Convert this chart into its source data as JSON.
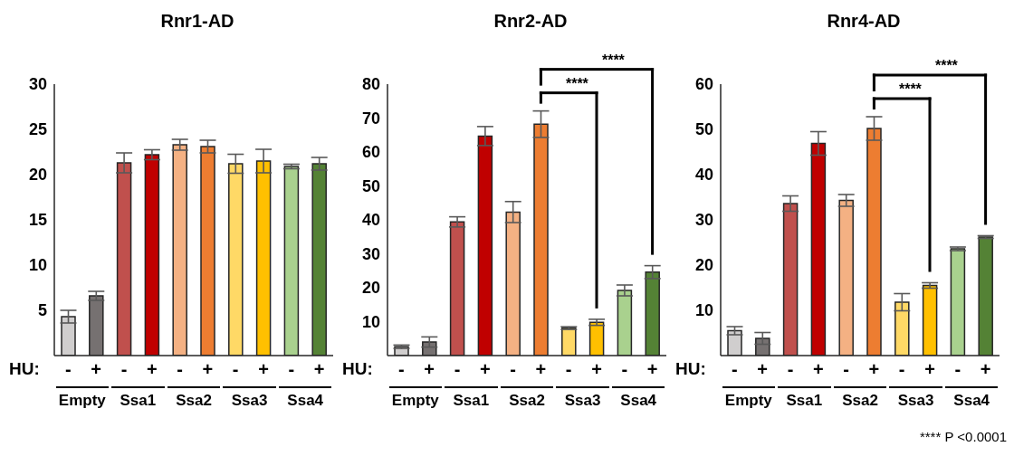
{
  "chart_data": [
    {
      "type": "bar",
      "title": "Rnr1-AD",
      "categories": [
        "-",
        "+",
        "-",
        "+",
        "-",
        "+",
        "-",
        "+",
        "-",
        "+"
      ],
      "values": [
        4.3,
        6.6,
        21.3,
        22.2,
        23.3,
        23.1,
        21.2,
        21.5,
        20.9,
        21.2
      ],
      "errors": [
        0.7,
        0.5,
        1.1,
        0.55,
        0.6,
        0.7,
        1.05,
        1.3,
        0.25,
        0.7
      ],
      "colors": [
        "#d0cece",
        "#767171",
        "#c0504d",
        "#c00000",
        "#f4b183",
        "#ed7d31",
        "#ffd966",
        "#ffc000",
        "#a9d18e",
        "#548235"
      ],
      "ylim": [
        0,
        30
      ],
      "yticks": [
        5,
        10,
        15,
        20,
        25,
        30
      ],
      "annotations": [
        "HU:",
        "Empty",
        "Ssa1",
        "Ssa2",
        "Ssa3",
        "Ssa4"
      ]
    },
    {
      "type": "bar",
      "title": "Rnr2-AD",
      "categories": [
        "-",
        "+",
        "-",
        "+",
        "-",
        "+",
        "-",
        "+",
        "-",
        "+"
      ],
      "values": [
        2.6,
        4.0,
        39.4,
        64.7,
        42.3,
        68.2,
        8.1,
        9.8,
        19.2,
        24.6
      ],
      "errors": [
        0.5,
        1.5,
        1.5,
        2.8,
        3.1,
        3.9,
        0.4,
        0.9,
        1.6,
        1.9
      ],
      "colors": [
        "#d0cece",
        "#767171",
        "#c0504d",
        "#c00000",
        "#f4b183",
        "#ed7d31",
        "#ffd966",
        "#ffc000",
        "#a9d18e",
        "#548235"
      ],
      "ylim": [
        0,
        80
      ],
      "yticks": [
        10,
        20,
        30,
        40,
        50,
        60,
        70,
        80
      ],
      "annotations": [
        "HU:",
        "Empty",
        "Ssa1",
        "Ssa2",
        "Ssa3",
        "Ssa4",
        "****",
        "****"
      ]
    },
    {
      "type": "bar",
      "title": "Rnr4-AD",
      "categories": [
        "-",
        "+",
        "-",
        "+",
        "-",
        "+",
        "-",
        "+",
        "-",
        "+"
      ],
      "values": [
        5.5,
        3.8,
        33.6,
        46.9,
        34.3,
        50.2,
        11.8,
        15.5,
        23.6,
        26.2
      ],
      "errors": [
        0.9,
        1.3,
        1.7,
        2.6,
        1.3,
        2.6,
        1.9,
        0.6,
        0.4,
        0.3
      ],
      "colors": [
        "#d0cece",
        "#767171",
        "#c0504d",
        "#c00000",
        "#f4b183",
        "#ed7d31",
        "#ffd966",
        "#ffc000",
        "#a9d18e",
        "#548235"
      ],
      "ylim": [
        0,
        60
      ],
      "yticks": [
        10,
        20,
        30,
        40,
        50,
        60
      ],
      "annotations": [
        "HU:",
        "Empty",
        "Ssa1",
        "Ssa2",
        "Ssa3",
        "Ssa4",
        "****",
        "****",
        "**** P <0.0001"
      ]
    }
  ]
}
